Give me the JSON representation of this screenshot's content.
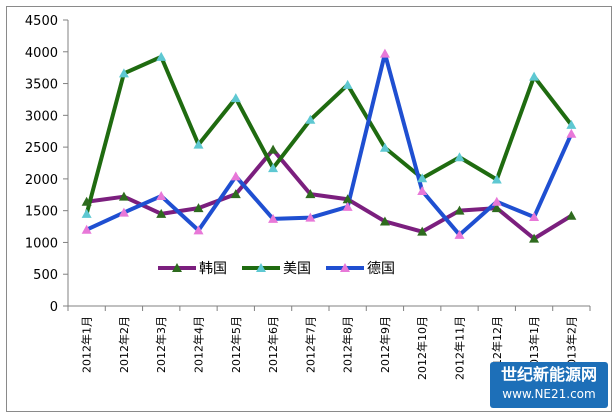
{
  "chart_data": {
    "type": "line",
    "title": "",
    "xlabel": "",
    "ylabel": "",
    "ylim": [
      0,
      4500
    ],
    "yticks": [
      0,
      500,
      1000,
      1500,
      2000,
      2500,
      3000,
      3500,
      4000,
      4500
    ],
    "categories": [
      "2012年1月",
      "2012年2月",
      "2012年3月",
      "2012年4月",
      "2012年5月",
      "2012年6月",
      "2012年7月",
      "2012年8月",
      "2012年9月",
      "2012年10月",
      "2012年11月",
      "2012年12月",
      "2013年1月",
      "2013年2月"
    ],
    "legend_position": "inside-lower-left",
    "grid": false,
    "series": [
      {
        "name": "韩国",
        "color": "#7b1f7e",
        "marker": "triangle",
        "marker_color": "#2e6b1e",
        "values": [
          1640,
          1720,
          1450,
          1540,
          1760,
          2460,
          1760,
          1680,
          1330,
          1170,
          1500,
          1540,
          1060,
          1420
        ]
      },
      {
        "name": "美国",
        "color": "#1f6b10",
        "marker": "triangle",
        "marker_color": "#5ec8d2",
        "values": [
          1450,
          3660,
          3920,
          2540,
          3270,
          2170,
          2930,
          3480,
          2490,
          2010,
          2340,
          1990,
          3610,
          2850
        ]
      },
      {
        "name": "德国",
        "color": "#1f4fd1",
        "marker": "triangle",
        "marker_color": "#e878d8",
        "values": [
          1200,
          1470,
          1730,
          1190,
          2040,
          1370,
          1390,
          1560,
          3970,
          1810,
          1120,
          1640,
          1400,
          2710
        ]
      }
    ]
  },
  "watermark": {
    "line1": "世纪新能源网",
    "line2": "www.NE21.com"
  }
}
